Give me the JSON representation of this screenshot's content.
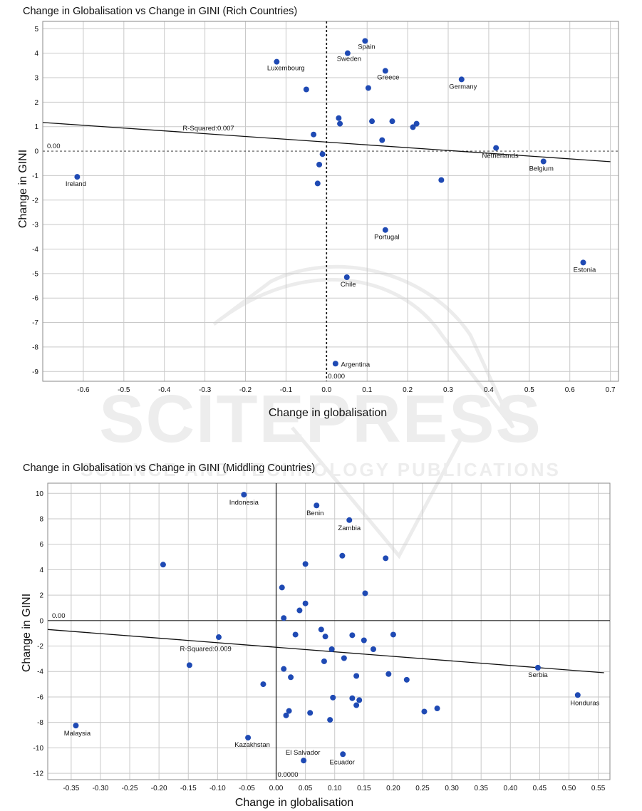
{
  "watermark": {
    "main": "SCITEPRESS",
    "sub": "SCIENCE AND TECHNOLOGY PUBLICATIONS"
  },
  "chart_data": [
    {
      "type": "scatter",
      "title": "Change in Globalisation vs Change in GINI (Rich Countries)",
      "xlabel": "Change in globalisation",
      "ylabel": "Change in GINI",
      "xlim": [
        -0.7,
        0.72
      ],
      "ylim": [
        -9.4,
        5.3
      ],
      "xticks": [
        -0.6,
        -0.5,
        -0.4,
        -0.3,
        -0.2,
        -0.1,
        0.0,
        0.1,
        0.2,
        0.3,
        0.4,
        0.5,
        0.6,
        0.7
      ],
      "xtick_labels": [
        "-0.6",
        "-0.5",
        "-0.4",
        "-0.3",
        "-0.2",
        "-0.1",
        "0.0",
        "0.1",
        "0.2",
        "0.3",
        "0.4",
        "0.5",
        "0.6",
        "0.7"
      ],
      "yticks": [
        5,
        4,
        3,
        2,
        1,
        0,
        -1,
        -2,
        -3,
        -4,
        -5,
        -6,
        -7,
        -8,
        -9
      ],
      "ytick_labels": [
        "5",
        "4",
        "3",
        "2",
        "1",
        "0",
        "-1",
        "-2",
        "-3",
        "-4",
        "-5",
        "-6",
        "-7",
        "-8",
        "-9"
      ],
      "grid": true,
      "zero_x_label": "0.000",
      "zero_y_label": "0.00",
      "zero_style": "dashed",
      "r_squared_label": "R-Squared:0.007",
      "trend": {
        "x": [
          -0.7,
          0.7
        ],
        "y": [
          1.17,
          -0.43
        ]
      },
      "points": [
        {
          "x": 0.095,
          "y": 4.5,
          "label": "Spain"
        },
        {
          "x": 0.052,
          "y": 4.0,
          "label": "Sweden"
        },
        {
          "x": -0.123,
          "y": 3.65,
          "label": "Luxembourg"
        },
        {
          "x": 0.145,
          "y": 3.28,
          "label": "Greece"
        },
        {
          "x": 0.333,
          "y": 2.93,
          "label": "Germany"
        },
        {
          "x": -0.05,
          "y": 2.52,
          "label": ""
        },
        {
          "x": 0.103,
          "y": 2.58,
          "label": ""
        },
        {
          "x": 0.03,
          "y": 1.35,
          "label": ""
        },
        {
          "x": 0.033,
          "y": 1.12,
          "label": ""
        },
        {
          "x": 0.112,
          "y": 1.22,
          "label": ""
        },
        {
          "x": 0.162,
          "y": 1.22,
          "label": ""
        },
        {
          "x": 0.213,
          "y": 0.98,
          "label": ""
        },
        {
          "x": 0.222,
          "y": 1.12,
          "label": ""
        },
        {
          "x": 0.137,
          "y": 0.45,
          "label": ""
        },
        {
          "x": -0.032,
          "y": 0.68,
          "label": ""
        },
        {
          "x": 0.418,
          "y": 0.13,
          "label": "Netherlands"
        },
        {
          "x": 0.535,
          "y": -0.42,
          "label": "Belgium"
        },
        {
          "x": -0.615,
          "y": -1.05,
          "label": "Ireland"
        },
        {
          "x": -0.01,
          "y": -0.12,
          "label": ""
        },
        {
          "x": -0.018,
          "y": -0.55,
          "label": ""
        },
        {
          "x": -0.022,
          "y": -1.32,
          "label": ""
        },
        {
          "x": 0.283,
          "y": -1.18,
          "label": ""
        },
        {
          "x": 0.145,
          "y": -3.22,
          "label": "Portugal"
        },
        {
          "x": 0.633,
          "y": -4.55,
          "label": "Estonia"
        },
        {
          "x": 0.05,
          "y": -5.15,
          "label": "Chile"
        },
        {
          "x": 0.022,
          "y": -8.68,
          "label": "Argentina"
        }
      ]
    },
    {
      "type": "scatter",
      "title": "Change in Globalisation vs Change in GINI (Middling Countries)",
      "xlabel": "Change in globalisation",
      "ylabel": "Change in GINI",
      "xlim": [
        -0.39,
        0.57
      ],
      "ylim": [
        -12.5,
        10.8
      ],
      "xticks": [
        -0.35,
        -0.3,
        -0.25,
        -0.2,
        -0.15,
        -0.1,
        -0.05,
        0.0,
        0.05,
        0.1,
        0.15,
        0.2,
        0.25,
        0.3,
        0.35,
        0.4,
        0.45,
        0.5,
        0.55
      ],
      "xtick_labels": [
        "-0.35",
        "-0.30",
        "-0.25",
        "-0.20",
        "-0.15",
        "-0.10",
        "-0.05",
        "0.00",
        "0.05",
        "0.10",
        "0.15",
        "0.20",
        "0.25",
        "0.30",
        "0.35",
        "0.40",
        "0.45",
        "0.50",
        "0.55"
      ],
      "yticks": [
        10,
        8,
        6,
        4,
        2,
        0,
        -2,
        -4,
        -6,
        -8,
        -10,
        -12
      ],
      "ytick_labels": [
        "10",
        "8",
        "6",
        "4",
        "2",
        "0",
        "-2",
        "-4",
        "-6",
        "-8",
        "-10",
        "-12"
      ],
      "grid": true,
      "zero_x_label": "0.0000",
      "zero_y_label": "0.00",
      "zero_style": "solid",
      "r_squared_label": "R-Squared:0.009",
      "trend": {
        "x": [
          -0.39,
          0.56
        ],
        "y": [
          -0.7,
          -4.1
        ]
      },
      "points": [
        {
          "x": -0.055,
          "y": 9.9,
          "label": "Indonesia"
        },
        {
          "x": 0.069,
          "y": 9.05,
          "label": "Benin"
        },
        {
          "x": 0.125,
          "y": 7.9,
          "label": "Zambia"
        },
        {
          "x": 0.113,
          "y": 5.1,
          "label": ""
        },
        {
          "x": 0.187,
          "y": 4.9,
          "label": ""
        },
        {
          "x": -0.193,
          "y": 4.4,
          "label": ""
        },
        {
          "x": 0.05,
          "y": 4.45,
          "label": ""
        },
        {
          "x": 0.01,
          "y": 2.6,
          "label": ""
        },
        {
          "x": 0.152,
          "y": 2.15,
          "label": ""
        },
        {
          "x": 0.05,
          "y": 1.35,
          "label": ""
        },
        {
          "x": 0.04,
          "y": 0.8,
          "label": ""
        },
        {
          "x": 0.013,
          "y": 0.2,
          "label": ""
        },
        {
          "x": 0.077,
          "y": -0.7,
          "label": ""
        },
        {
          "x": 0.033,
          "y": -1.1,
          "label": ""
        },
        {
          "x": 0.084,
          "y": -1.25,
          "label": ""
        },
        {
          "x": 0.13,
          "y": -1.15,
          "label": ""
        },
        {
          "x": 0.2,
          "y": -1.1,
          "label": ""
        },
        {
          "x": 0.15,
          "y": -1.55,
          "label": ""
        },
        {
          "x": -0.098,
          "y": -1.3,
          "label": ""
        },
        {
          "x": 0.095,
          "y": -2.25,
          "label": ""
        },
        {
          "x": 0.166,
          "y": -2.25,
          "label": ""
        },
        {
          "x": 0.116,
          "y": -2.95,
          "label": ""
        },
        {
          "x": 0.082,
          "y": -3.2,
          "label": ""
        },
        {
          "x": -0.148,
          "y": -3.5,
          "label": ""
        },
        {
          "x": 0.013,
          "y": -3.8,
          "label": ""
        },
        {
          "x": 0.137,
          "y": -4.35,
          "label": ""
        },
        {
          "x": 0.025,
          "y": -4.45,
          "label": ""
        },
        {
          "x": 0.192,
          "y": -4.2,
          "label": ""
        },
        {
          "x": 0.223,
          "y": -4.65,
          "label": ""
        },
        {
          "x": -0.022,
          "y": -5.0,
          "label": ""
        },
        {
          "x": 0.447,
          "y": -3.7,
          "label": "Serbia"
        },
        {
          "x": 0.515,
          "y": -5.85,
          "label": "Honduras"
        },
        {
          "x": 0.097,
          "y": -6.05,
          "label": ""
        },
        {
          "x": 0.13,
          "y": -6.1,
          "label": ""
        },
        {
          "x": 0.142,
          "y": -6.25,
          "label": ""
        },
        {
          "x": 0.137,
          "y": -6.65,
          "label": ""
        },
        {
          "x": 0.275,
          "y": -6.9,
          "label": ""
        },
        {
          "x": 0.253,
          "y": -7.15,
          "label": ""
        },
        {
          "x": 0.022,
          "y": -7.1,
          "label": ""
        },
        {
          "x": 0.058,
          "y": -7.25,
          "label": ""
        },
        {
          "x": 0.017,
          "y": -7.45,
          "label": ""
        },
        {
          "x": 0.092,
          "y": -7.8,
          "label": ""
        },
        {
          "x": -0.342,
          "y": -8.25,
          "label": "Malaysia"
        },
        {
          "x": -0.048,
          "y": -9.2,
          "label": "Kazakhstan"
        },
        {
          "x": 0.047,
          "y": -11.0,
          "label": "El Salvador"
        },
        {
          "x": 0.114,
          "y": -10.5,
          "label": "Ecuador"
        }
      ]
    }
  ]
}
